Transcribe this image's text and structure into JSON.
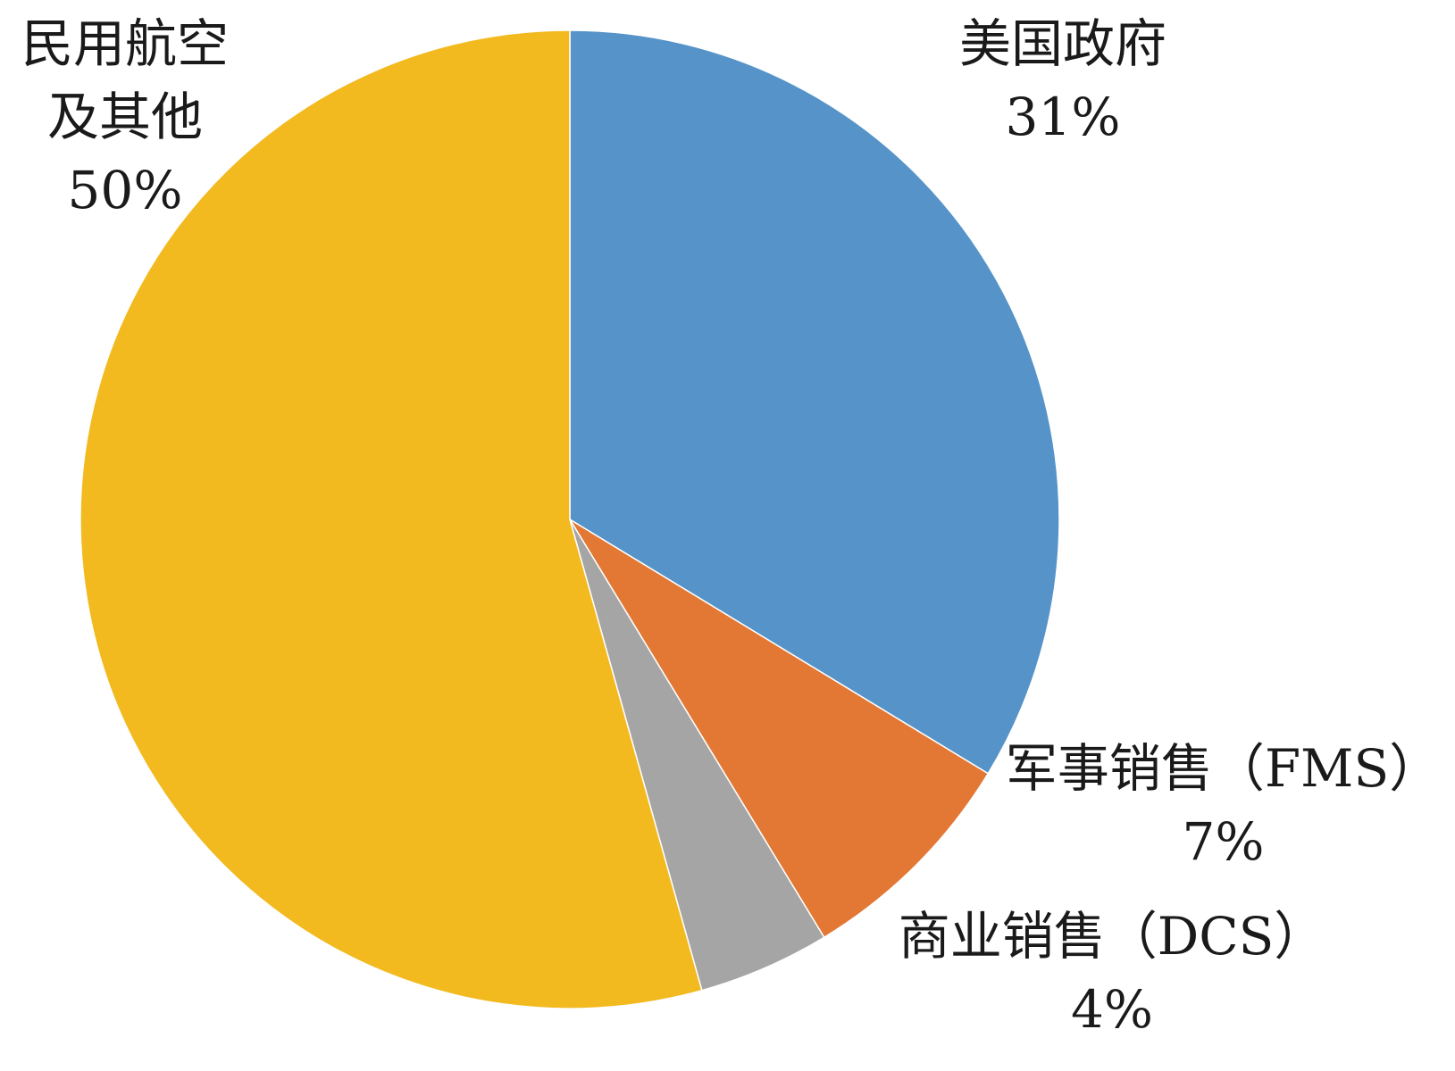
{
  "chart_data": {
    "type": "pie",
    "title": "",
    "start_angle_deg": 0,
    "direction": "clockwise",
    "slices": [
      {
        "label": "美国政府",
        "value_label": "31%",
        "value": 31,
        "color": "#5593C8"
      },
      {
        "label": "军事销售（FMS）",
        "value_label": "7%",
        "value": 7,
        "color": "#E27834"
      },
      {
        "label": "商业销售（DCS）",
        "value_label": "4%",
        "value": 4,
        "color": "#A5A5A5"
      },
      {
        "label": "民用航空及其他",
        "value_label": "50%",
        "value": 50,
        "color": "#F2BA1F"
      }
    ]
  }
}
